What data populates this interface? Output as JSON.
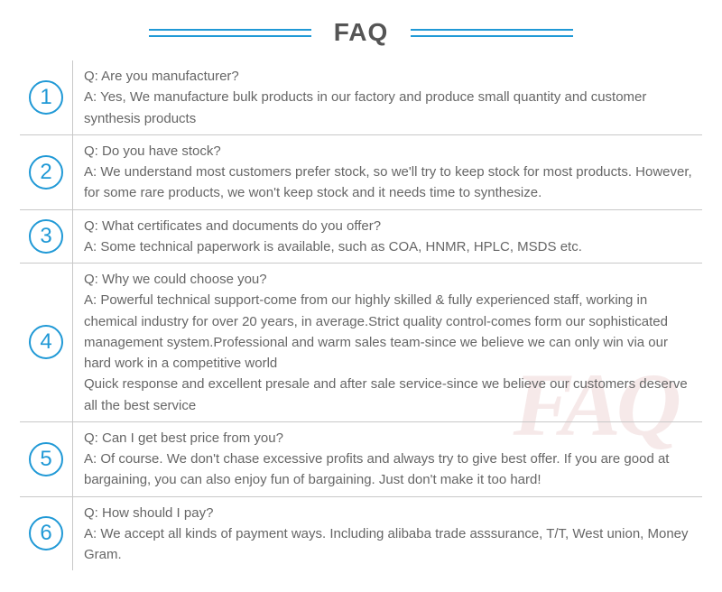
{
  "header": {
    "title": "FAQ",
    "line_color": "#2099d6",
    "title_color": "#555555"
  },
  "watermark": {
    "text": "FAQ",
    "color": "rgba(165,40,40,0.10)"
  },
  "colors": {
    "accent": "#2099d6",
    "text": "#666666",
    "border": "#c8c8c8",
    "background": "#ffffff"
  },
  "items": [
    {
      "num": "1",
      "q": "Q: Are you manufacturer?",
      "a": "A: Yes, We manufacture bulk products in our factory and produce small quantity and customer synthesis products"
    },
    {
      "num": "2",
      "q": "Q: Do you have stock?",
      "a": "A: We understand most customers prefer stock, so we'll try to keep stock for most products. However, for some rare products, we won't keep stock and it needs time to synthesize."
    },
    {
      "num": "3",
      "q": "Q: What certificates and documents do you offer?",
      "a": "A: Some technical paperwork is available, such as COA, HNMR, HPLC, MSDS etc."
    },
    {
      "num": "4",
      "q": "Q: Why we could choose you?",
      "a": "A: Powerful technical support-come from our highly skilled & fully experienced staff, working in chemical industry for over 20 years, in average.Strict quality control-comes form our sophisticated management system.Professional and warm sales team-since we believe we can only win via our hard work in a competitive world\nQuick response and excellent presale and after sale service-since we believe our customers deserve all the best service"
    },
    {
      "num": "5",
      "q": "Q: Can I get best price from you?",
      "a": "A: Of course. We don't chase excessive profits and always try to give best offer. If you are good at bargaining, you can also enjoy fun of bargaining. Just don't make it too hard!"
    },
    {
      "num": "6",
      "q": "Q: How should I pay?",
      "a": "A: We accept all kinds of payment ways. Including alibaba trade asssurance, T/T, West union, Money Gram."
    }
  ]
}
